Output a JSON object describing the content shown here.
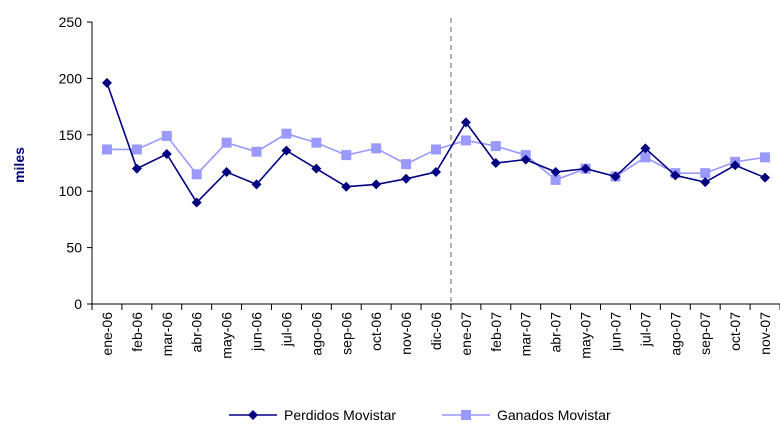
{
  "chart_data": {
    "type": "line",
    "title": "",
    "xlabel": "",
    "ylabel": "miles",
    "ylim": [
      0,
      250
    ],
    "yticks": [
      0,
      50,
      100,
      150,
      200,
      250
    ],
    "grid": false,
    "legend_position": "bottom",
    "categories": [
      "ene-06",
      "feb-06",
      "mar-06",
      "abr-06",
      "may-06",
      "jun-06",
      "jul-06",
      "ago-06",
      "sep-06",
      "oct-06",
      "nov-06",
      "dic-06",
      "ene-07",
      "feb-07",
      "mar-07",
      "abr-07",
      "may-07",
      "jun-07",
      "jul-07",
      "ago-07",
      "sep-07",
      "oct-07",
      "nov-07"
    ],
    "separator_after_category": "dic-06",
    "series": [
      {
        "name": "Perdidos Movistar",
        "color": "#000080",
        "marker": "diamond",
        "values": [
          196,
          120,
          133,
          90,
          117,
          106,
          136,
          120,
          104,
          106,
          111,
          117,
          161,
          125,
          128,
          117,
          120,
          113,
          138,
          114,
          108,
          123,
          112
        ]
      },
      {
        "name": "Ganados Movistar",
        "color": "#9999ff",
        "marker": "square",
        "values": [
          137,
          137,
          149,
          115,
          143,
          135,
          151,
          143,
          132,
          138,
          124,
          137,
          145,
          140,
          132,
          110,
          120,
          113,
          130,
          116,
          116,
          126,
          130
        ]
      }
    ]
  }
}
